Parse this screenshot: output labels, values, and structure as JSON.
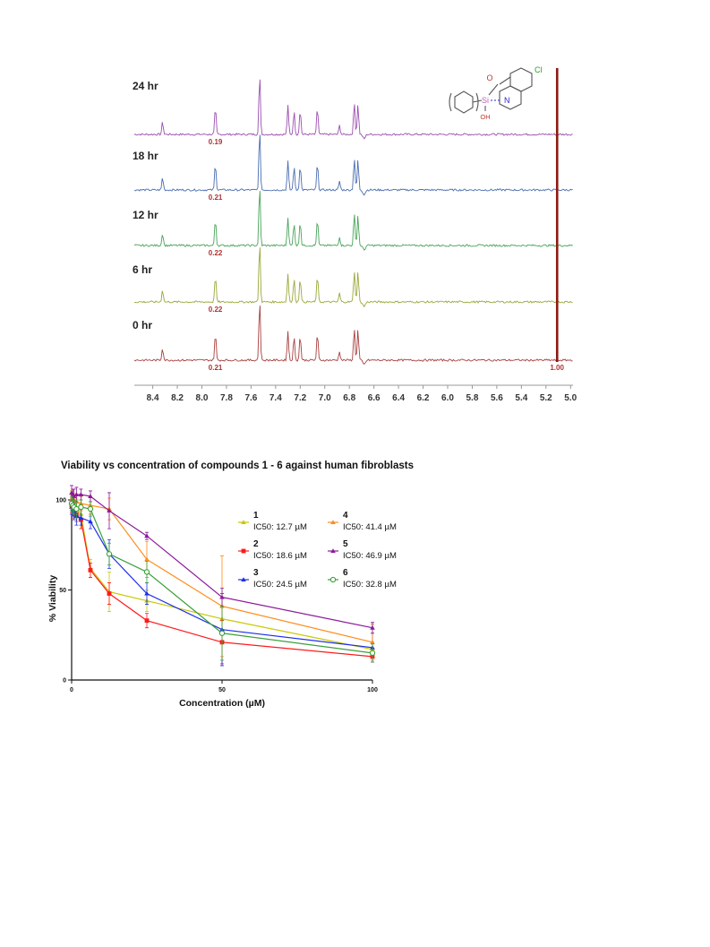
{
  "chart_data": [
    {
      "type": "line",
      "xaxis": {
        "ticks": [
          "8.4",
          "8.2",
          "8.0",
          "7.8",
          "7.6",
          "7.4",
          "7.2",
          "7.0",
          "6.8",
          "6.6",
          "6.4",
          "6.2",
          "6.0",
          "5.8",
          "5.6",
          "5.4",
          "5.2",
          "5.0"
        ],
        "range": [
          8.55,
          4.98
        ],
        "reversed": true
      },
      "series": [
        {
          "name": "24 hr",
          "color": "#9b4fb0",
          "integral": "0.19"
        },
        {
          "name": "18 hr",
          "color": "#4a6db0",
          "integral": "0.21"
        },
        {
          "name": "12 hr",
          "color": "#4aa35a",
          "integral": "0.22"
        },
        {
          "name": "6 hr",
          "color": "#9aa83a",
          "integral": "0.22"
        },
        {
          "name": "0 hr",
          "color": "#a8403f",
          "integral": "0.21"
        }
      ],
      "reference_integral": "1.00",
      "reference_line_color": "#8b1a12",
      "peaks_ppm": [
        8.32,
        7.89,
        7.53,
        7.3,
        7.25,
        7.2,
        7.06,
        6.88,
        6.76,
        6.73
      ],
      "inset_structure": {
        "labels": [
          "O",
          "Cl",
          "Si",
          "N",
          "OH"
        ]
      }
    },
    {
      "type": "line",
      "title": "Viability vs concentration of compounds 1 - 6 against human fibroblasts",
      "xlabel": "Concentration (µM)",
      "ylabel": "% Viability",
      "xticks": [
        "0",
        "50",
        "100"
      ],
      "yticks": [
        "0",
        "50",
        "100"
      ],
      "xlim": [
        0,
        100
      ],
      "ylim": [
        0,
        100
      ],
      "x": [
        0,
        0.4,
        0.8,
        1.6,
        3.1,
        6.25,
        12.5,
        25,
        50,
        100
      ],
      "series": [
        {
          "name": "1",
          "ic50": "IC50: 12.7 µM",
          "color": "#c8c800",
          "values": [
            100,
            98,
            97,
            95,
            92,
            62,
            49,
            44,
            34,
            17
          ],
          "errors": [
            5,
            6,
            6,
            6,
            8,
            5,
            11,
            6,
            14,
            4
          ]
        },
        {
          "name": "2",
          "ic50": "IC50: 18.6 µM",
          "color": "#ff1a1a",
          "values": [
            97,
            95,
            94,
            92,
            89,
            61,
            48,
            33,
            21,
            13
          ],
          "errors": [
            4,
            4,
            4,
            4,
            5,
            4,
            6,
            4,
            12,
            3
          ]
        },
        {
          "name": "3",
          "ic50": "IC50: 24.5 µM",
          "color": "#1c2ee8",
          "values": [
            96,
            95,
            94,
            91,
            90,
            88,
            70,
            48,
            28,
            18
          ],
          "errors": [
            4,
            4,
            5,
            5,
            4,
            4,
            8,
            6,
            20,
            8
          ]
        },
        {
          "name": "4",
          "ic50": "IC50: 41.4 µM",
          "color": "#ff8c1a",
          "values": [
            99,
            98,
            100,
            99,
            98,
            97,
            95,
            67,
            41,
            21
          ],
          "errors": [
            4,
            3,
            3,
            4,
            4,
            5,
            6,
            10,
            28,
            10
          ]
        },
        {
          "name": "5",
          "ic50": "IC50: 46.9 µM",
          "color": "#8b1a9b",
          "values": [
            104,
            103,
            102,
            103,
            103,
            102,
            94,
            80,
            46,
            29
          ],
          "errors": [
            4,
            3,
            4,
            4,
            3,
            3,
            10,
            2,
            5,
            3
          ]
        },
        {
          "name": "6",
          "ic50": "IC50: 32.8 µM",
          "color": "#3aa03a",
          "values": [
            98,
            97,
            96,
            95,
            96,
            95,
            70,
            60,
            26,
            15
          ],
          "errors": [
            4,
            4,
            4,
            5,
            4,
            4,
            6,
            6,
            15,
            5
          ]
        }
      ]
    }
  ]
}
